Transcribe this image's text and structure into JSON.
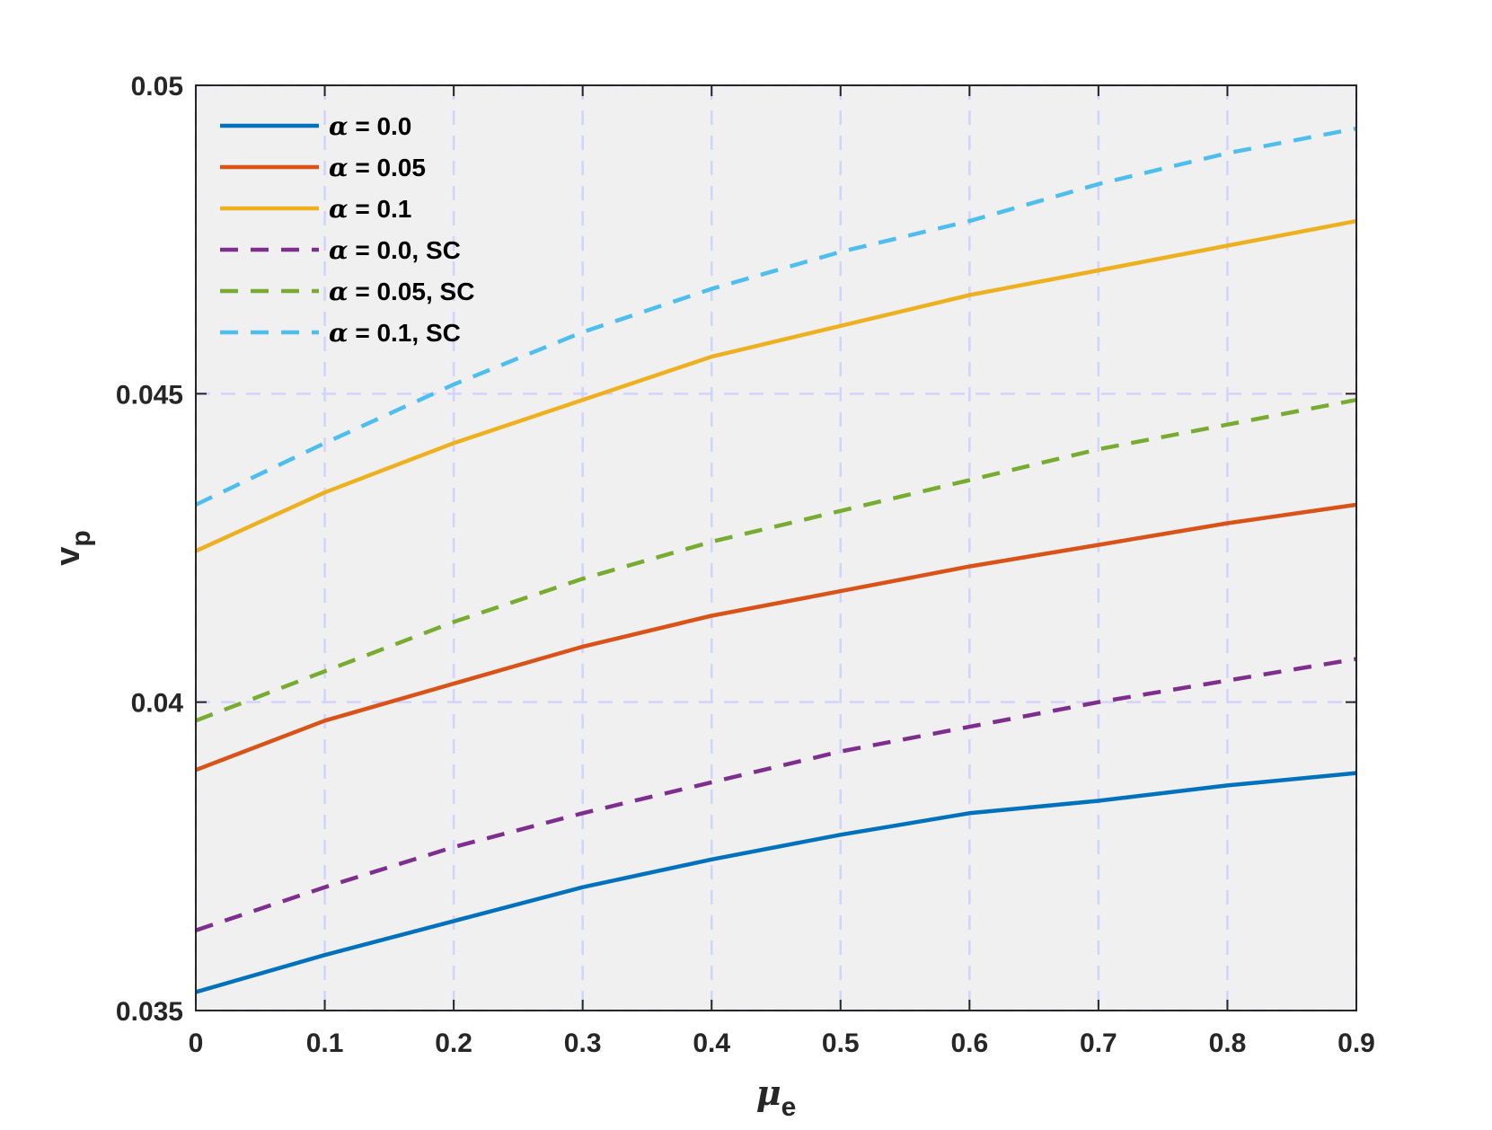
{
  "chart_data": {
    "type": "line",
    "xlabel": {
      "symbol": "μ",
      "subscript": "e"
    },
    "ylabel": {
      "symbol": "v",
      "subscript": "p"
    },
    "xlim": [
      0,
      0.9
    ],
    "ylim": [
      0.035,
      0.05
    ],
    "xticks": [
      0,
      0.1,
      0.2,
      0.3,
      0.4,
      0.5,
      0.6,
      0.7,
      0.8,
      0.9
    ],
    "xtick_labels": [
      "0",
      "0.1",
      "0.2",
      "0.3",
      "0.4",
      "0.5",
      "0.6",
      "0.7",
      "0.8",
      "0.9"
    ],
    "yticks": [
      0.035,
      0.04,
      0.045,
      0.05
    ],
    "ytick_labels": [
      "0.035",
      "0.04",
      "0.045",
      "0.05"
    ],
    "grid": true,
    "legend_position": "top-left",
    "colors": {
      "plot_background": "#f0f0f0",
      "grid": "#d2d2ff",
      "axes": "#262626"
    },
    "x": [
      0,
      0.1,
      0.2,
      0.3,
      0.4,
      0.5,
      0.6,
      0.7,
      0.8,
      0.9
    ],
    "series": [
      {
        "greek": "α",
        "name": " = 0.0",
        "color": "#0072BD",
        "style": "solid",
        "values": [
          0.0353,
          0.0359,
          0.03645,
          0.037,
          0.03745,
          0.03785,
          0.0382,
          0.0384,
          0.03865,
          0.03885
        ]
      },
      {
        "greek": "α",
        "name": " = 0.05",
        "color": "#D95319",
        "style": "solid",
        "values": [
          0.0389,
          0.0397,
          0.0403,
          0.0409,
          0.0414,
          0.0418,
          0.0422,
          0.04255,
          0.0429,
          0.0432
        ]
      },
      {
        "greek": "α",
        "name": " = 0.1",
        "color": "#EDB120",
        "style": "solid",
        "values": [
          0.04245,
          0.0434,
          0.0442,
          0.0449,
          0.0456,
          0.0461,
          0.0466,
          0.047,
          0.0474,
          0.0478
        ]
      },
      {
        "greek": "α",
        "name": " = 0.0, SC",
        "color": "#7E2F8E",
        "style": "dashed",
        "values": [
          0.0363,
          0.037,
          0.03765,
          0.0382,
          0.0387,
          0.0392,
          0.0396,
          0.04,
          0.04035,
          0.0407
        ]
      },
      {
        "greek": "α",
        "name": " = 0.05, SC",
        "color": "#77AC30",
        "style": "dashed",
        "values": [
          0.0397,
          0.0405,
          0.0413,
          0.042,
          0.0426,
          0.0431,
          0.0436,
          0.0441,
          0.0445,
          0.0449
        ]
      },
      {
        "greek": "α",
        "name": " = 0.1, SC",
        "color": "#4DBEEE",
        "style": "dashed",
        "values": [
          0.0432,
          0.0442,
          0.04515,
          0.046,
          0.0467,
          0.0473,
          0.0478,
          0.0484,
          0.0489,
          0.0493
        ]
      }
    ]
  }
}
